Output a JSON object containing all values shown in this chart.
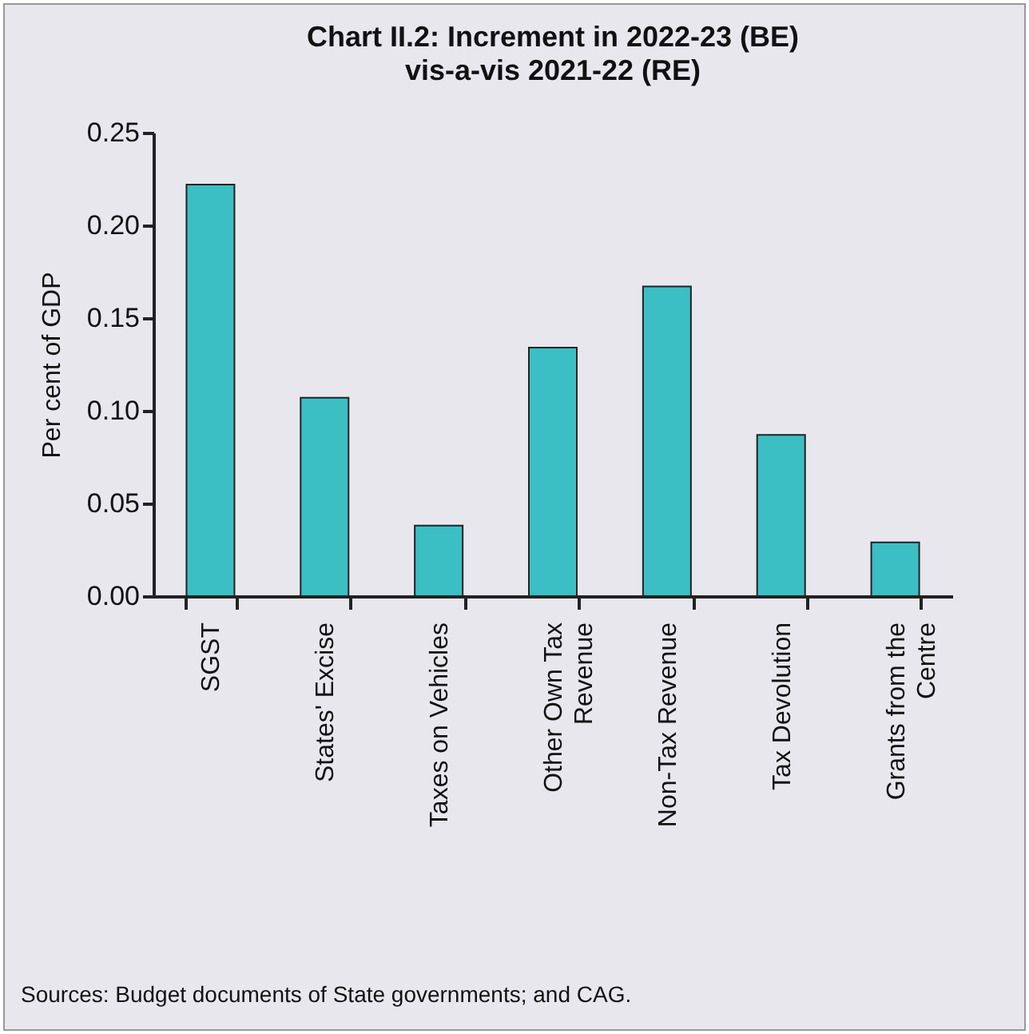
{
  "chart_data": {
    "type": "bar",
    "title": "Chart II.2: Increment in 2022-23 (BE)",
    "subtitle": "vis-a-vis 2021-22 (RE)",
    "ylabel": "Per cent of GDP",
    "categories": [
      "SGST",
      "States' Excise",
      "Taxes on Vehicles",
      "Other Own Tax Revenue",
      "Non-Tax Revenue",
      "Tax Devolution",
      "Grants from the Centre"
    ],
    "values": [
      0.222,
      0.107,
      0.038,
      0.134,
      0.167,
      0.087,
      0.029
    ],
    "color": "#3bbfc4",
    "ylim": [
      0,
      0.25
    ],
    "yticks": [
      {
        "value": 0,
        "label": "0.00"
      },
      {
        "value": 0.05,
        "label": "0.05"
      },
      {
        "value": 0.1,
        "label": "0.10"
      },
      {
        "value": 0.15,
        "label": "0.15"
      },
      {
        "value": 0.2,
        "label": "0.20"
      },
      {
        "value": 0.25,
        "label": "0.25"
      }
    ],
    "grid": false,
    "annotations": [
      "Sources: Budget documents of State governments; and CAG."
    ]
  }
}
